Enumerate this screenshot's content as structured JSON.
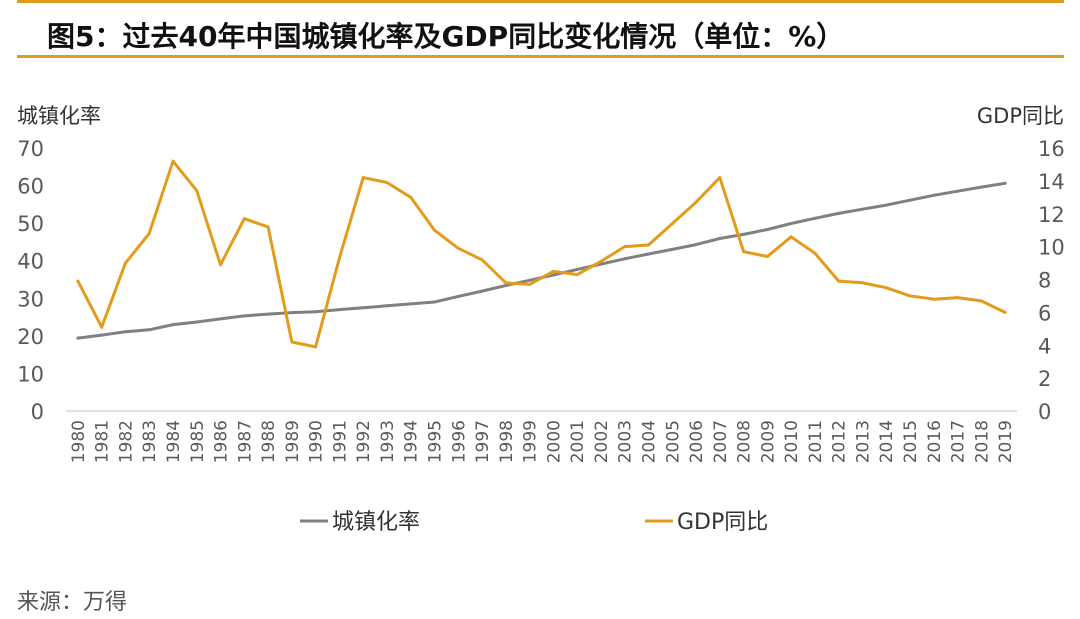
{
  "title": "图5：过去40年中国城镇化率及GDP同比变化情况（单位：%）",
  "source": "来源：万得",
  "colors": {
    "urban": "#808080",
    "gdp": "#e39b1c",
    "axis": "#d9d9d9",
    "tick": "#595959"
  },
  "chart_data": {
    "type": "line",
    "ylabel_left": "城镇化率",
    "ylabel_right": "GDP同比",
    "ylim_left": [
      0,
      70
    ],
    "yticks_left": [
      0,
      10,
      20,
      30,
      40,
      50,
      60,
      70
    ],
    "ylim_right": [
      0,
      16
    ],
    "yticks_right": [
      0,
      2,
      4,
      6,
      8,
      10,
      12,
      14,
      16
    ],
    "grid": false,
    "legend_placement": "bottom",
    "x": [
      "1980",
      "1981",
      "1982",
      "1983",
      "1984",
      "1985",
      "1986",
      "1987",
      "1988",
      "1989",
      "1990",
      "1991",
      "1992",
      "1993",
      "1994",
      "1995",
      "1996",
      "1997",
      "1998",
      "1999",
      "2000",
      "2001",
      "2002",
      "2003",
      "2004",
      "2005",
      "2006",
      "2007",
      "2008",
      "2009",
      "2010",
      "2011",
      "2012",
      "2013",
      "2014",
      "2015",
      "2016",
      "2017",
      "2018",
      "2019"
    ],
    "series": [
      {
        "name": "城镇化率",
        "axis": "left",
        "values": [
          19.4,
          20.2,
          21.1,
          21.6,
          23.0,
          23.7,
          24.5,
          25.3,
          25.8,
          26.2,
          26.4,
          27.0,
          27.5,
          28.0,
          28.5,
          29.0,
          30.5,
          31.9,
          33.4,
          34.8,
          36.2,
          37.7,
          39.1,
          40.5,
          41.8,
          43.0,
          44.3,
          45.9,
          47.0,
          48.3,
          49.9,
          51.3,
          52.6,
          53.7,
          54.8,
          56.1,
          57.4,
          58.5,
          59.6,
          60.6
        ]
      },
      {
        "name": "GDP同比",
        "axis": "right",
        "values": [
          7.9,
          5.1,
          9.0,
          10.8,
          15.2,
          13.4,
          8.9,
          11.7,
          11.2,
          4.2,
          3.9,
          9.3,
          14.2,
          13.9,
          13.0,
          11.0,
          9.9,
          9.2,
          7.8,
          7.7,
          8.5,
          8.3,
          9.1,
          10.0,
          10.1,
          11.4,
          12.7,
          14.2,
          9.7,
          9.4,
          10.6,
          9.6,
          7.9,
          7.8,
          7.5,
          7.0,
          6.8,
          6.9,
          6.7,
          6.0
        ]
      }
    ]
  }
}
